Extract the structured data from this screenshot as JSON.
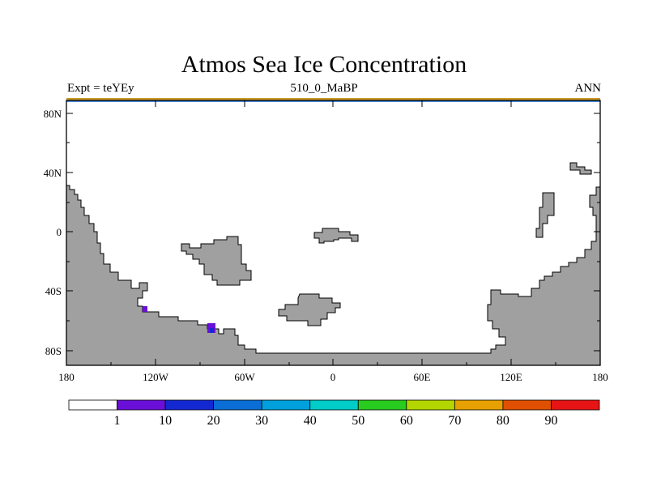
{
  "title": "Atmos Sea Ice Concentration",
  "subtitle_left": "Expt = teYEy",
  "subtitle_center": "510_0_MaBP",
  "subtitle_right": "ANN",
  "y_tick_labels": [
    "80N",
    "40N",
    "0",
    "40S",
    "80S"
  ],
  "x_tick_labels": [
    "180",
    "120W",
    "60W",
    "0",
    "60E",
    "120E",
    "180"
  ],
  "colorbar": {
    "labels": [
      "1",
      "10",
      "20",
      "30",
      "40",
      "50",
      "60",
      "70",
      "80",
      "90"
    ],
    "colors": [
      "#ffffff",
      "#6a0fd8",
      "#1428d2",
      "#0a6ed6",
      "#00a0dc",
      "#00ccc8",
      "#28cc1e",
      "#b4d600",
      "#e6a000",
      "#e05000",
      "#e61414"
    ]
  },
  "colors": {
    "land": "#a0a0a0",
    "ocean": "#ffffff",
    "ice_low": "#6a0fd8",
    "ice_mid": "#1428d2"
  }
}
